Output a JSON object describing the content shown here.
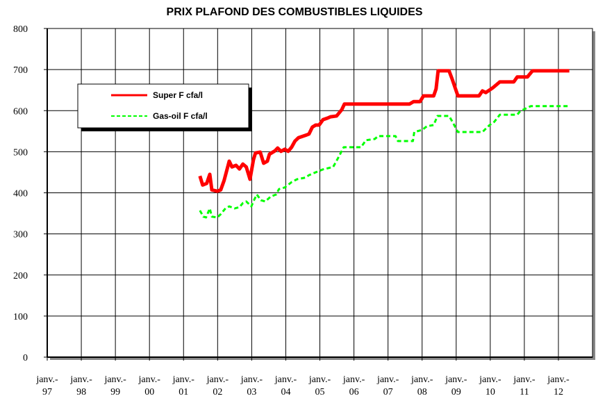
{
  "chart_data": {
    "type": "line",
    "title": "PRIX PLAFOND DES COMBUSTIBLES LIQUIDES",
    "xlim": [
      1997,
      2013
    ],
    "xticks": [
      {
        "value": 1997,
        "label": "janv.-97"
      },
      {
        "value": 1998,
        "label": "janv.-98"
      },
      {
        "value": 1999,
        "label": "janv.-99"
      },
      {
        "value": 2000,
        "label": "janv.-00"
      },
      {
        "value": 2001,
        "label": "janv.-01"
      },
      {
        "value": 2002,
        "label": "janv.-02"
      },
      {
        "value": 2003,
        "label": "janv.-03"
      },
      {
        "value": 2004,
        "label": "janv.-04"
      },
      {
        "value": 2005,
        "label": "janv.-05"
      },
      {
        "value": 2006,
        "label": "janv.-06"
      },
      {
        "value": 2007,
        "label": "janv.-07"
      },
      {
        "value": 2008,
        "label": "janv.-08"
      },
      {
        "value": 2009,
        "label": "janv.-09"
      },
      {
        "value": 2010,
        "label": "janv.-10"
      },
      {
        "value": 2011,
        "label": "janv.-11"
      },
      {
        "value": 2012,
        "label": "janv.-12"
      }
    ],
    "ylim": [
      0,
      800
    ],
    "yticks": [
      0,
      100,
      200,
      300,
      400,
      500,
      600,
      700,
      800
    ],
    "grid": true,
    "legend": "upper left",
    "series": [
      {
        "name": "Super F cfa/l",
        "color": "#ff0000",
        "style": "solid",
        "x": [
          2001.48,
          2001.56,
          2001.68,
          2001.77,
          2001.83,
          2001.99,
          2002.09,
          2002.19,
          2002.34,
          2002.42,
          2002.54,
          2002.64,
          2002.74,
          2002.84,
          2002.95,
          2003.05,
          2003.11,
          2003.25,
          2003.35,
          2003.46,
          2003.52,
          2003.68,
          2003.76,
          2003.86,
          2003.97,
          2004.07,
          2004.17,
          2004.27,
          2004.37,
          2004.58,
          2004.68,
          2004.78,
          2004.88,
          2004.98,
          2005.09,
          2005.23,
          2005.31,
          2005.49,
          2005.64,
          2005.72,
          2007.63,
          2007.75,
          2007.94,
          2008.04,
          2008.34,
          2008.41,
          2008.47,
          2008.79,
          2008.89,
          2009.05,
          2009.67,
          2009.77,
          2009.87,
          2010.08,
          2010.28,
          2010.69,
          2010.79,
          2011.09,
          2011.24,
          2012.32
        ],
        "values": [
          441,
          419,
          423,
          445,
          407,
          404,
          407,
          430,
          477,
          463,
          467,
          458,
          470,
          463,
          433,
          480,
          497,
          499,
          472,
          477,
          494,
          502,
          509,
          501,
          506,
          501,
          511,
          526,
          534,
          540,
          543,
          560,
          565,
          565,
          578,
          582,
          585,
          587,
          602,
          616,
          616,
          622,
          622,
          636,
          636,
          653,
          697,
          697,
          675,
          636,
          636,
          648,
          644,
          656,
          670,
          670,
          682,
          682,
          697,
          697
        ]
      },
      {
        "name": "Gas-oil F cfa/l",
        "color": "#00ff00",
        "style": "dashed",
        "x": [
          2001.48,
          2001.58,
          2001.66,
          2001.77,
          2001.83,
          2001.99,
          2002.09,
          2002.23,
          2002.34,
          2002.5,
          2002.64,
          2002.74,
          2002.84,
          2002.99,
          2003.05,
          2003.15,
          2003.27,
          2003.4,
          2003.56,
          2003.72,
          2003.8,
          2003.97,
          2004.17,
          2004.33,
          2004.58,
          2004.68,
          2004.88,
          2005.09,
          2005.39,
          2005.53,
          2005.7,
          2006.21,
          2006.35,
          2006.61,
          2006.71,
          2007.22,
          2007.29,
          2007.73,
          2007.77,
          2008.0,
          2008.14,
          2008.34,
          2008.45,
          2008.79,
          2008.89,
          2009.05,
          2009.77,
          2009.98,
          2010.12,
          2010.28,
          2010.79,
          2010.88,
          2011.19,
          2012.32
        ],
        "values": [
          357,
          342,
          340,
          362,
          342,
          340,
          348,
          362,
          367,
          362,
          365,
          375,
          379,
          367,
          379,
          396,
          382,
          379,
          391,
          396,
          409,
          413,
          426,
          433,
          437,
          443,
          450,
          457,
          463,
          484,
          511,
          511,
          528,
          531,
          538,
          538,
          526,
          526,
          548,
          553,
          562,
          565,
          587,
          587,
          573,
          548,
          548,
          565,
          573,
          590,
          590,
          599,
          611,
          611
        ]
      }
    ]
  }
}
